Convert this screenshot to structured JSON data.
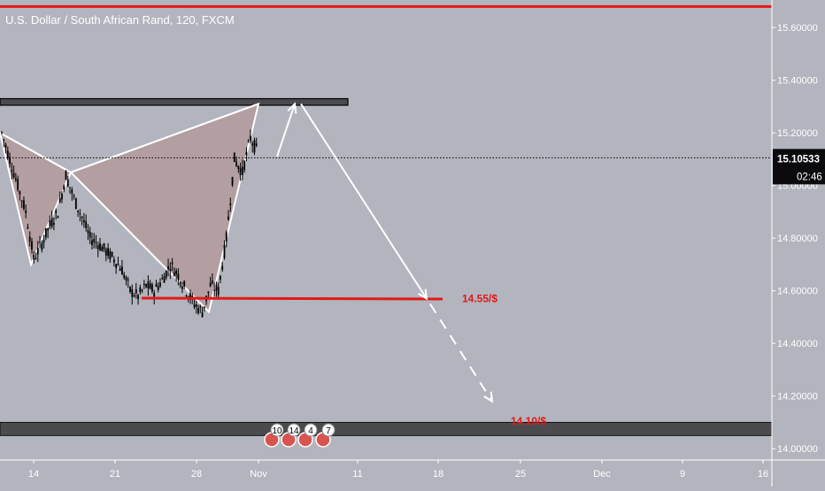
{
  "chart_data": {
    "type": "candlestick",
    "title": "U.S. Dollar / South African Rand, 120, FXCM",
    "y_axis": {
      "range": [
        14.0,
        15.7
      ],
      "ticks": [
        "15.60000",
        "15.40000",
        "15.20000",
        "15.00000",
        "14.80000",
        "14.60000",
        "14.40000",
        "14.20000",
        "14.00000"
      ]
    },
    "x_axis": {
      "ticks": [
        "14",
        "21",
        "28",
        "Nov",
        "11",
        "18",
        "25",
        "Dec",
        "9",
        "16"
      ]
    },
    "current_price": "15.10533",
    "countdown": "02:46",
    "price_series": [
      15.2,
      15.1,
      15.0,
      14.9,
      14.72,
      14.78,
      14.85,
      14.9,
      15.04,
      14.95,
      14.88,
      14.8,
      14.78,
      14.75,
      14.72,
      14.68,
      14.6,
      14.58,
      14.62,
      14.6,
      14.64,
      14.7,
      14.66,
      14.6,
      14.55,
      14.52,
      14.62,
      14.6,
      14.8,
      15.1,
      15.05,
      15.18,
      15.12
    ],
    "pattern_points": [
      {
        "time": "Oct 9",
        "price": 15.2
      },
      {
        "time": "Oct 13",
        "price": 14.7
      },
      {
        "time": "Oct 17",
        "price": 15.05
      },
      {
        "time": "Oct 28",
        "price": 14.52
      },
      {
        "time": "Oct 31",
        "price": 15.31
      }
    ],
    "resistance_zone": [
      15.305,
      15.33
    ],
    "top_line": 15.68,
    "support_line": 14.57,
    "support_zone": [
      14.05,
      14.1
    ],
    "projection": {
      "up_to": 15.31,
      "solid_to": 14.57,
      "dashed_to": 14.18
    },
    "annotations": [
      {
        "text": "14.55/$",
        "price": 14.57
      },
      {
        "text": "14.10/$",
        "price": 14.105
      }
    ],
    "event_markers": [
      "10",
      "14",
      "4",
      "7"
    ],
    "colors": {
      "background": "#b2b5be",
      "pattern_fill": "#b39a9d",
      "line_red": "#e31919",
      "drawing": "#ffffff",
      "zone_dark": "#4a4a4f",
      "candles": "#000000"
    }
  }
}
